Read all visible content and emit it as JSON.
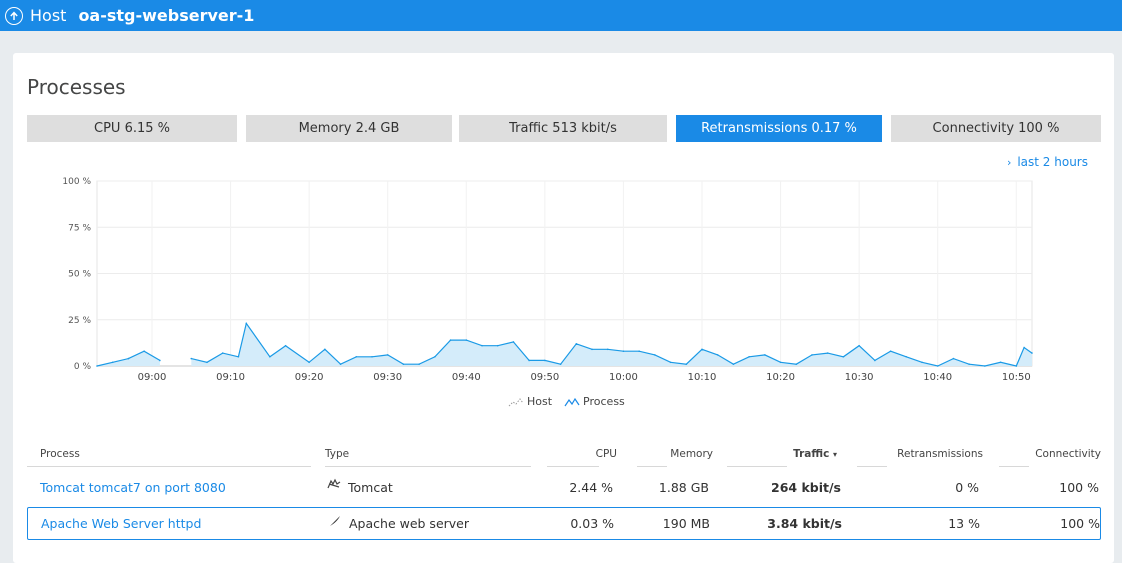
{
  "header": {
    "breadcrumb": "Host",
    "host_name": "oa-stg-webserver-1",
    "back_icon": "up-arrow-circle-icon"
  },
  "panel": {
    "title": "Processes",
    "tabs": [
      {
        "label": "CPU 6.15 %",
        "active": false
      },
      {
        "label": "Memory 2.4 GB",
        "active": false
      },
      {
        "label": "Traffic 513 kbit/s",
        "active": false
      },
      {
        "label": "Retransmissions 0.17 %",
        "active": true
      },
      {
        "label": "Connectivity 100 %",
        "active": false
      }
    ],
    "timeframe": "last 2 hours"
  },
  "chart_data": {
    "type": "area",
    "x_ticks": [
      "09:00",
      "09:10",
      "09:20",
      "09:30",
      "09:40",
      "09:50",
      "10:00",
      "10:10",
      "10:20",
      "10:30",
      "10:40",
      "10:50"
    ],
    "y_ticks": [
      "0 %",
      "25 %",
      "50 %",
      "75 %",
      "100 %"
    ],
    "ylim": [
      0,
      100
    ],
    "xlim": [
      "08:53",
      "10:52"
    ],
    "grid": true,
    "legend_position": "bottom",
    "series": [
      {
        "name": "Host",
        "values": []
      },
      {
        "name": "Process",
        "segments": [
          [
            [
              "08:53",
              0
            ],
            [
              "08:55",
              2
            ],
            [
              "08:57",
              4
            ],
            [
              "08:59",
              8
            ],
            [
              "09:01",
              3
            ]
          ],
          [
            [
              "09:05",
              4
            ],
            [
              "09:07",
              2
            ],
            [
              "09:09",
              7
            ],
            [
              "09:11",
              5
            ],
            [
              "09:12",
              23
            ],
            [
              "09:15",
              5
            ],
            [
              "09:17",
              11
            ],
            [
              "09:20",
              2
            ],
            [
              "09:22",
              9
            ],
            [
              "09:24",
              1
            ],
            [
              "09:26",
              5
            ],
            [
              "09:28",
              5
            ],
            [
              "09:30",
              6
            ],
            [
              "09:32",
              1
            ],
            [
              "09:34",
              1
            ],
            [
              "09:36",
              5
            ],
            [
              "09:38",
              14
            ],
            [
              "09:40",
              14
            ],
            [
              "09:42",
              11
            ],
            [
              "09:44",
              11
            ],
            [
              "09:46",
              13
            ],
            [
              "09:48",
              3
            ],
            [
              "09:50",
              3
            ],
            [
              "09:52",
              1
            ],
            [
              "09:54",
              12
            ],
            [
              "09:56",
              9
            ],
            [
              "09:58",
              9
            ],
            [
              "10:00",
              8
            ],
            [
              "10:02",
              8
            ],
            [
              "10:04",
              6
            ],
            [
              "10:06",
              2
            ],
            [
              "10:08",
              1
            ],
            [
              "10:10",
              9
            ],
            [
              "10:12",
              6
            ],
            [
              "10:14",
              1
            ],
            [
              "10:16",
              5
            ],
            [
              "10:18",
              6
            ],
            [
              "10:20",
              2
            ],
            [
              "10:22",
              1
            ],
            [
              "10:24",
              6
            ],
            [
              "10:26",
              7
            ],
            [
              "10:28",
              5
            ],
            [
              "10:30",
              11
            ],
            [
              "10:32",
              3
            ],
            [
              "10:34",
              8
            ],
            [
              "10:36",
              5
            ],
            [
              "10:38",
              2
            ],
            [
              "10:40",
              0
            ],
            [
              "10:42",
              4
            ],
            [
              "10:44",
              1
            ],
            [
              "10:46",
              0
            ],
            [
              "10:48",
              2
            ],
            [
              "10:50",
              0
            ],
            [
              "10:51",
              10
            ],
            [
              "10:52",
              7
            ]
          ]
        ]
      }
    ]
  },
  "legend": {
    "host": "Host",
    "process": "Process"
  },
  "table": {
    "headers": {
      "process": "Process",
      "type": "Type",
      "cpu": "CPU",
      "memory": "Memory",
      "traffic": "Traffic",
      "sort_indicator": "▾",
      "retransmissions": "Retransmissions",
      "connectivity": "Connectivity"
    },
    "rows": [
      {
        "process": "Tomcat tomcat7 on port 8080",
        "type_icon": "tomcat-cat-icon",
        "type": "Tomcat",
        "cpu": "2.44 %",
        "memory": "1.88 GB",
        "traffic": "264 kbit/s",
        "retransmissions": "0 %",
        "connectivity": "100 %",
        "selected": false
      },
      {
        "process": "Apache Web Server httpd",
        "type_icon": "apache-feather-icon",
        "type": "Apache web server",
        "cpu": "0.03 %",
        "memory": "190 MB",
        "traffic": "3.84 kbit/s",
        "retransmissions": "13 %",
        "connectivity": "100 %",
        "selected": true
      }
    ]
  },
  "colors": {
    "accent": "#1a8ae6",
    "area_fill": "#d4ecfa",
    "area_stroke": "#1a9ae6"
  }
}
